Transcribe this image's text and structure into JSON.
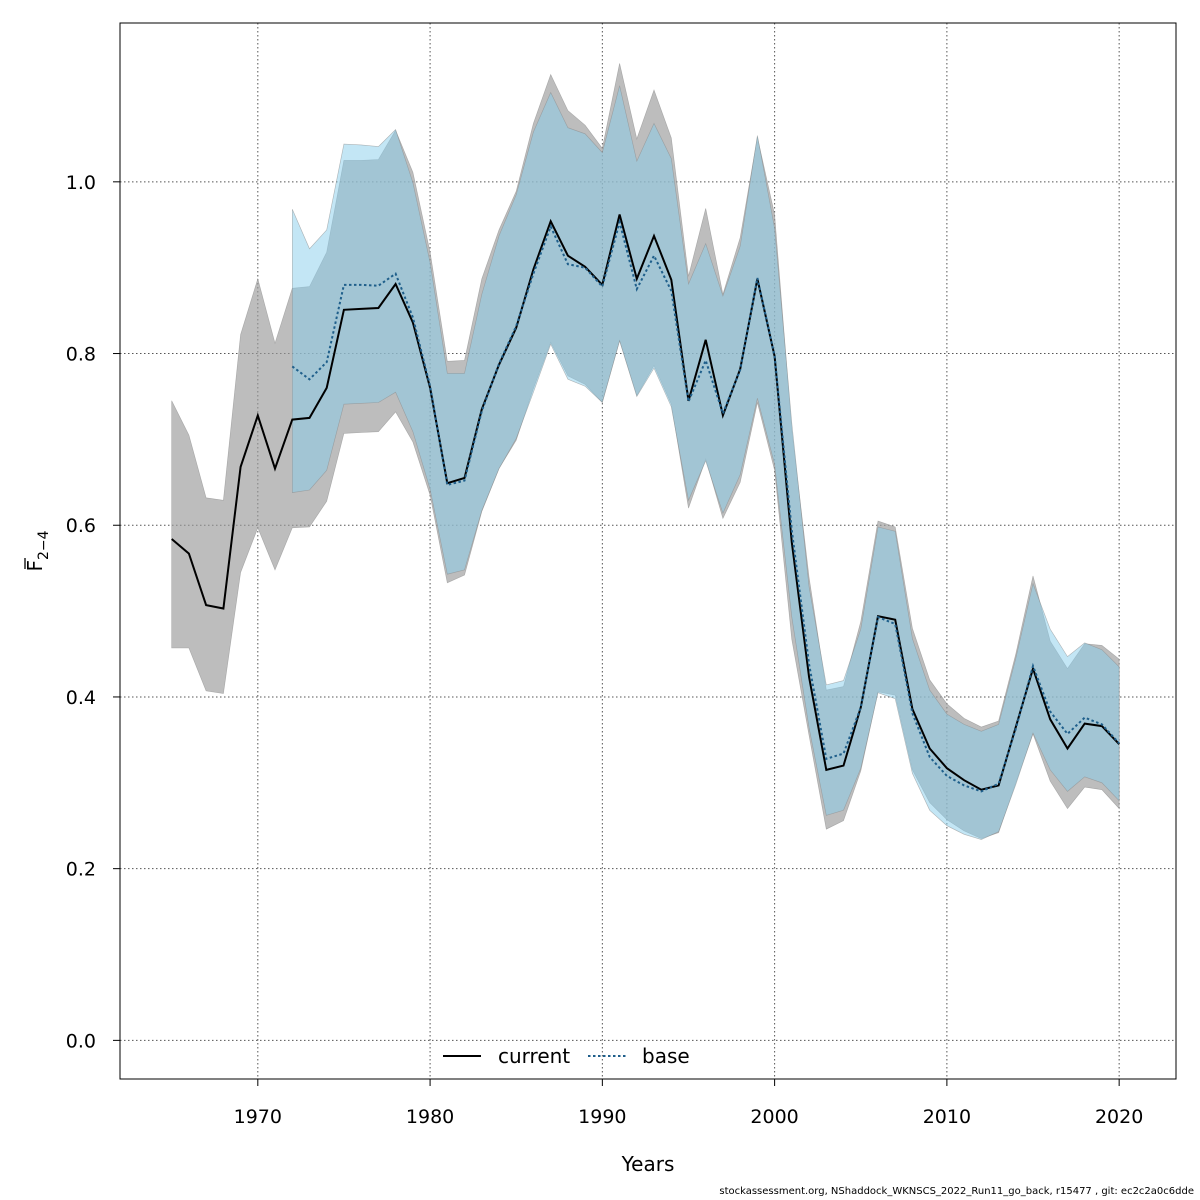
{
  "footer": "stockassessment.org, NShaddock_WKNSCS_2022_Run11_go_back, r15477 , git: ec2c2a0c6dde",
  "chart_data": {
    "type": "line",
    "xlabel": "Years",
    "ylabel_main": "F",
    "ylabel_sub": "2−4",
    "xlim": [
      1962,
      2023.3
    ],
    "ylim": [
      -0.045,
      1.185
    ],
    "xticks": [
      1970,
      1980,
      1990,
      2000,
      2010,
      2020
    ],
    "yticks": [
      0.0,
      0.2,
      0.4,
      0.6,
      0.8,
      1.0
    ],
    "ytick_labels": [
      "0.0",
      "0.2",
      "0.4",
      "0.6",
      "0.8",
      "1.0"
    ],
    "grid": true,
    "legend_position": "bottom",
    "series": [
      {
        "name": "current",
        "color": "#000000",
        "band_color": "#9a9a9a",
        "line_style": "solid",
        "x": [
          1965,
          1966,
          1967,
          1968,
          1969,
          1970,
          1971,
          1972,
          1973,
          1974,
          1975,
          1976,
          1977,
          1978,
          1979,
          1980,
          1981,
          1982,
          1983,
          1984,
          1985,
          1986,
          1987,
          1988,
          1989,
          1990,
          1991,
          1992,
          1993,
          1994,
          1995,
          1996,
          1997,
          1998,
          1999,
          2000,
          2001,
          2002,
          2003,
          2004,
          2005,
          2006,
          2007,
          2008,
          2009,
          2010,
          2011,
          2012,
          2013,
          2014,
          2015,
          2016,
          2017,
          2018,
          2019,
          2020
        ],
        "values": [
          0.584,
          0.567,
          0.507,
          0.503,
          0.668,
          0.728,
          0.666,
          0.723,
          0.725,
          0.76,
          0.851,
          0.852,
          0.853,
          0.881,
          0.836,
          0.76,
          0.649,
          0.655,
          0.735,
          0.787,
          0.83,
          0.898,
          0.954,
          0.914,
          0.901,
          0.88,
          0.962,
          0.887,
          0.937,
          0.886,
          0.745,
          0.816,
          0.728,
          0.782,
          0.887,
          0.797,
          0.58,
          0.423,
          0.315,
          0.32,
          0.388,
          0.494,
          0.49,
          0.386,
          0.34,
          0.317,
          0.303,
          0.292,
          0.297,
          0.365,
          0.433,
          0.374,
          0.34,
          0.369,
          0.366,
          0.345
        ],
        "lower": [
          0.457,
          0.457,
          0.407,
          0.404,
          0.545,
          0.597,
          0.548,
          0.597,
          0.598,
          0.628,
          0.707,
          0.708,
          0.709,
          0.732,
          0.697,
          0.635,
          0.533,
          0.542,
          0.616,
          0.666,
          0.699,
          0.759,
          0.813,
          0.774,
          0.764,
          0.743,
          0.815,
          0.751,
          0.786,
          0.741,
          0.62,
          0.677,
          0.608,
          0.65,
          0.743,
          0.664,
          0.467,
          0.355,
          0.246,
          0.256,
          0.314,
          0.406,
          0.402,
          0.315,
          0.277,
          0.257,
          0.244,
          0.235,
          0.242,
          0.3,
          0.357,
          0.302,
          0.27,
          0.295,
          0.292,
          0.27
        ],
        "upper": [
          0.745,
          0.705,
          0.632,
          0.629,
          0.822,
          0.887,
          0.812,
          0.876,
          0.878,
          0.918,
          1.025,
          1.025,
          1.026,
          1.06,
          1.011,
          0.918,
          0.791,
          0.792,
          0.887,
          0.944,
          0.989,
          1.068,
          1.125,
          1.083,
          1.066,
          1.039,
          1.138,
          1.05,
          1.107,
          1.051,
          0.89,
          0.969,
          0.869,
          0.935,
          1.052,
          0.962,
          0.711,
          0.539,
          0.408,
          0.412,
          0.488,
          0.605,
          0.598,
          0.48,
          0.42,
          0.392,
          0.375,
          0.365,
          0.372,
          0.45,
          0.541,
          0.465,
          0.433,
          0.462,
          0.46,
          0.444
        ]
      },
      {
        "name": "base",
        "color": "#1f5f8b",
        "band_color": "#87ceeb",
        "line_style": "dotted",
        "x": [
          1972,
          1973,
          1974,
          1975,
          1976,
          1977,
          1978,
          1979,
          1980,
          1981,
          1982,
          1983,
          1984,
          1985,
          1986,
          1987,
          1988,
          1989,
          1990,
          1991,
          1992,
          1993,
          1994,
          1995,
          1996,
          1997,
          1998,
          1999,
          2000,
          2001,
          2002,
          2003,
          2004,
          2005,
          2006,
          2007,
          2008,
          2009,
          2010,
          2011,
          2012,
          2013,
          2014,
          2015,
          2016,
          2017,
          2018,
          2019,
          2020
        ],
        "values": [
          0.785,
          0.77,
          0.79,
          0.88,
          0.88,
          0.879,
          0.893,
          0.842,
          0.762,
          0.647,
          0.652,
          0.733,
          0.788,
          0.832,
          0.893,
          0.948,
          0.904,
          0.9,
          0.878,
          0.953,
          0.875,
          0.914,
          0.873,
          0.744,
          0.792,
          0.73,
          0.781,
          0.888,
          0.797,
          0.594,
          0.438,
          0.328,
          0.334,
          0.388,
          0.493,
          0.485,
          0.381,
          0.33,
          0.308,
          0.297,
          0.29,
          0.299,
          0.363,
          0.436,
          0.383,
          0.357,
          0.376,
          0.368,
          0.346
        ],
        "lower": [
          0.638,
          0.641,
          0.664,
          0.741,
          0.742,
          0.743,
          0.755,
          0.709,
          0.642,
          0.543,
          0.548,
          0.617,
          0.666,
          0.701,
          0.755,
          0.811,
          0.77,
          0.762,
          0.743,
          0.815,
          0.75,
          0.783,
          0.738,
          0.629,
          0.675,
          0.614,
          0.659,
          0.748,
          0.671,
          0.493,
          0.364,
          0.262,
          0.268,
          0.317,
          0.405,
          0.398,
          0.311,
          0.268,
          0.25,
          0.24,
          0.234,
          0.243,
          0.298,
          0.358,
          0.315,
          0.29,
          0.307,
          0.3,
          0.279
        ],
        "upper": [
          0.968,
          0.922,
          0.944,
          1.044,
          1.043,
          1.041,
          1.061,
          0.999,
          0.906,
          0.777,
          0.777,
          0.869,
          0.937,
          0.985,
          1.058,
          1.104,
          1.063,
          1.056,
          1.034,
          1.112,
          1.024,
          1.068,
          1.027,
          0.881,
          0.928,
          0.867,
          0.925,
          1.054,
          0.946,
          0.719,
          0.528,
          0.414,
          0.419,
          0.479,
          0.598,
          0.593,
          0.468,
          0.408,
          0.38,
          0.368,
          0.36,
          0.368,
          0.445,
          0.532,
          0.479,
          0.447,
          0.463,
          0.455,
          0.435
        ]
      }
    ]
  }
}
